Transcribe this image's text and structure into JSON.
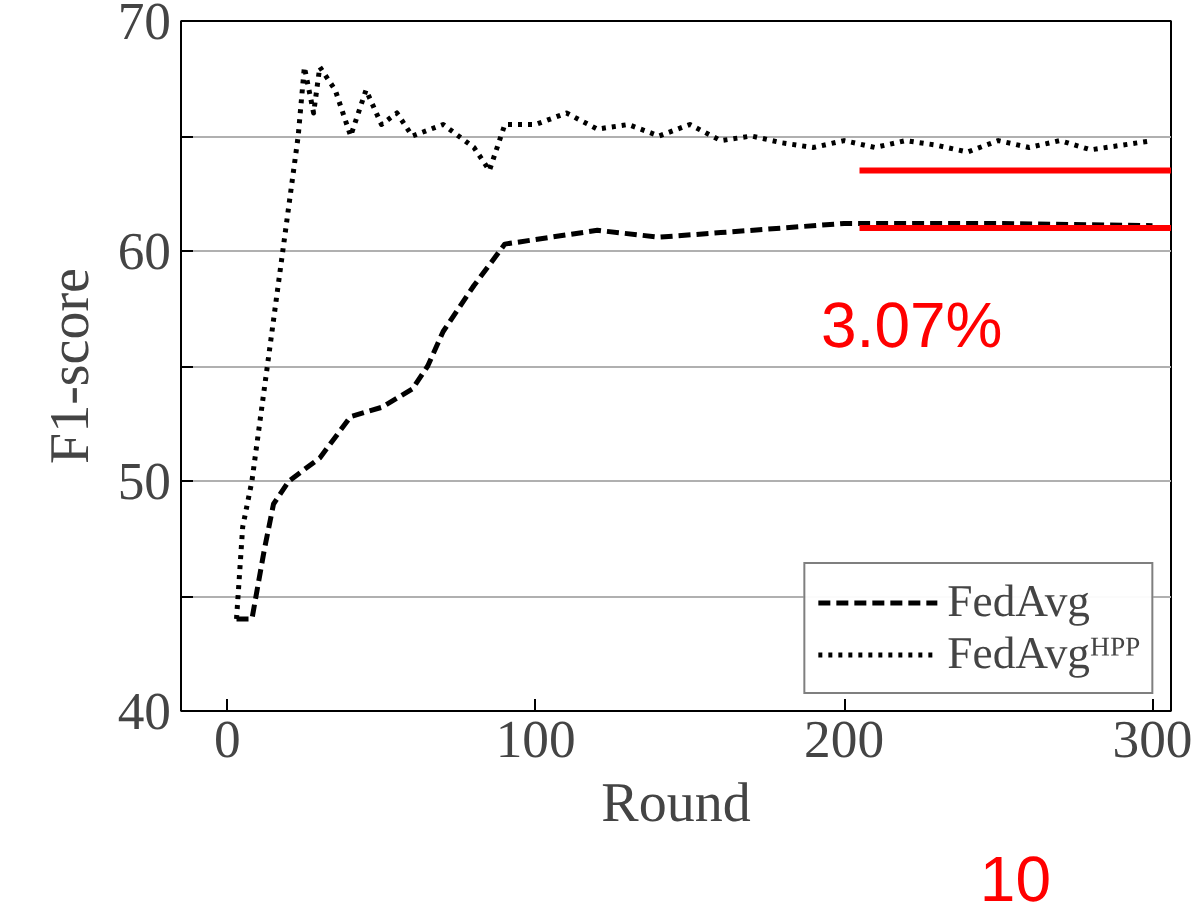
{
  "chart_data": {
    "type": "line",
    "xlabel": "Round",
    "ylabel": "F1-score",
    "xlim": [
      -15,
      306
    ],
    "ylim": [
      40,
      70
    ],
    "xticks": [
      0,
      100,
      200,
      300
    ],
    "yticks": [
      40,
      {
        "value": 45,
        "label": null
      },
      50,
      {
        "value": 55,
        "label": null
      },
      60,
      {
        "value": 65,
        "label": null
      },
      70
    ],
    "grid": "y",
    "legend": "bottom right",
    "series": [
      {
        "name": "FedAvg",
        "color": "#000000",
        "line_style": "dashed",
        "x": [
          3,
          8,
          12,
          15,
          20,
          25,
          30,
          40,
          50,
          60,
          65,
          70,
          80,
          90,
          100,
          120,
          140,
          160,
          180,
          200,
          250,
          300
        ],
        "values": [
          44,
          44,
          47,
          49,
          50,
          50.5,
          51,
          52.8,
          53.2,
          54,
          55,
          56.5,
          58.5,
          60.3,
          60.5,
          60.9,
          60.6,
          60.8,
          61,
          61.2,
          61.2,
          61.1
        ]
      },
      {
        "name": "FedAvgᴴᴾᴾ",
        "color": "#000000",
        "line_style": "dotted",
        "x": [
          3,
          5,
          8,
          10,
          12,
          15,
          17,
          20,
          23,
          25,
          28,
          30,
          35,
          40,
          45,
          50,
          55,
          60,
          70,
          80,
          85,
          90,
          100,
          110,
          120,
          130,
          140,
          150,
          160,
          170,
          180,
          190,
          200,
          210,
          220,
          230,
          240,
          250,
          260,
          270,
          280,
          290,
          300
        ],
        "values": [
          44,
          48,
          50,
          52,
          54,
          57,
          59,
          62,
          65,
          68,
          66,
          68,
          67,
          65,
          67,
          65.5,
          66,
          65,
          65.5,
          64.5,
          63.5,
          65.5,
          65.5,
          66,
          65.3,
          65.5,
          65,
          65.5,
          64.8,
          65,
          64.7,
          64.5,
          64.8,
          64.5,
          64.8,
          64.6,
          64.3,
          64.8,
          64.5,
          64.8,
          64.4,
          64.6,
          64.8
        ]
      },
      {
        "type": "line",
        "color": "#ff0000",
        "line_style": "solid",
        "x": [
          205,
          306
        ],
        "values": [
          63.5,
          63.5
        ]
      },
      {
        "type": "line",
        "color": "#ff0000",
        "line_style": "solid",
        "x": [
          205,
          306
        ],
        "values": [
          61.0,
          61.0
        ]
      }
    ],
    "annotations": [
      "3.07%",
      "10"
    ]
  }
}
